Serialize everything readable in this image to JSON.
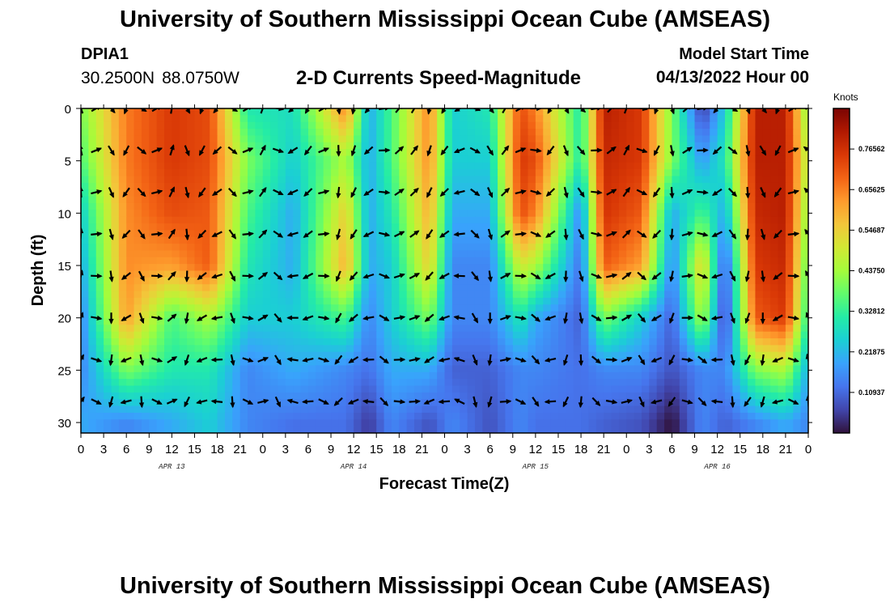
{
  "header": {
    "title": "University of Southern Mississippi Ocean Cube (AMSEAS)",
    "station_id": "DPIA1",
    "latitude": "30.2500N",
    "longitude": "88.0750W",
    "subtitle": "2-D Currents Speed-Magnitude",
    "model_start_label": "Model Start Time",
    "model_start_value": "04/13/2022 Hour 00"
  },
  "footer": {
    "title": "University of Southern Mississippi Ocean Cube (AMSEAS)"
  },
  "colors": {
    "colormap": [
      "#30123b",
      "#4145ab",
      "#4675ed",
      "#39a2fc",
      "#1bcfd4",
      "#24eca6",
      "#61fc6c",
      "#a4fc3b",
      "#d1e834",
      "#f3c63a",
      "#fe9b2d",
      "#f36315",
      "#d93806",
      "#b11901",
      "#7a0403"
    ]
  },
  "chart_data": {
    "type": "heatmap",
    "title": "2-D Currents Speed-Magnitude",
    "xlabel": "Forecast Time(Z)",
    "ylabel": "Depth (ft)",
    "x_unit": "hours since 2022-04-13 00Z",
    "xlim": [
      0,
      96
    ],
    "ylim": [
      0,
      31
    ],
    "y_inverted": true,
    "x_ticks": [
      0,
      3,
      6,
      9,
      12,
      15,
      18,
      21,
      24,
      27,
      30,
      33,
      36,
      39,
      42,
      45,
      48,
      51,
      54,
      57,
      60,
      63,
      66,
      69,
      72,
      75,
      78,
      81,
      84,
      87,
      90,
      93,
      96
    ],
    "x_tick_labels": [
      "0",
      "3",
      "6",
      "9",
      "12",
      "15",
      "18",
      "21",
      "0",
      "3",
      "6",
      "9",
      "12",
      "15",
      "18",
      "21",
      "0",
      "3",
      "6",
      "9",
      "12",
      "15",
      "18",
      "21",
      "0",
      "3",
      "6",
      "9",
      "12",
      "15",
      "18",
      "21",
      "0"
    ],
    "day_labels": [
      {
        "x": 12,
        "label": "APR 13"
      },
      {
        "x": 36,
        "label": "APR 14"
      },
      {
        "x": 60,
        "label": "APR 15"
      },
      {
        "x": 84,
        "label": "APR 16"
      }
    ],
    "y_ticks": [
      0,
      5,
      10,
      15,
      20,
      25,
      30
    ],
    "y_tick_labels": [
      "0",
      "5",
      "10",
      "15",
      "20",
      "25",
      "30"
    ],
    "colorbar": {
      "units": "Knots",
      "range": [
        0,
        0.875
      ],
      "ticks": [
        0.10937,
        0.21875,
        0.32812,
        0.4375,
        0.54687,
        0.65625,
        0.76562
      ],
      "tick_labels": [
        "0.10937",
        "0.21875",
        "0.32812",
        "0.43750",
        "0.54687",
        "0.65625",
        "0.76562"
      ]
    },
    "depths_ft": [
      0,
      4,
      8,
      12,
      16,
      20,
      24,
      28
    ],
    "speed_cells": {
      "hours": [
        0,
        6,
        12,
        17,
        22,
        28,
        35,
        38,
        41,
        46,
        49,
        54,
        58,
        60,
        66,
        69,
        74,
        78,
        82,
        85,
        89,
        93,
        96
      ],
      "depths_ft": [
        0,
        5,
        10,
        15,
        20,
        25,
        30
      ],
      "rows": [
        [
          0.4,
          0.66,
          0.75,
          0.72,
          0.3,
          0.28,
          0.65,
          0.2,
          0.35,
          0.65,
          0.25,
          0.3,
          0.72,
          0.65,
          0.3,
          0.8,
          0.75,
          0.4,
          0.05,
          0.25,
          0.8,
          0.8,
          0.4
        ],
        [
          0.35,
          0.66,
          0.75,
          0.72,
          0.4,
          0.25,
          0.45,
          0.2,
          0.35,
          0.64,
          0.25,
          0.25,
          0.75,
          0.72,
          0.3,
          0.78,
          0.75,
          0.4,
          0.18,
          0.3,
          0.8,
          0.8,
          0.45
        ],
        [
          0.25,
          0.64,
          0.72,
          0.7,
          0.35,
          0.2,
          0.55,
          0.2,
          0.3,
          0.6,
          0.2,
          0.2,
          0.72,
          0.65,
          0.15,
          0.76,
          0.7,
          0.2,
          0.35,
          0.2,
          0.78,
          0.8,
          0.4
        ],
        [
          0.2,
          0.64,
          0.62,
          0.7,
          0.3,
          0.2,
          0.6,
          0.2,
          0.25,
          0.55,
          0.15,
          0.15,
          0.5,
          0.45,
          0.12,
          0.7,
          0.62,
          0.15,
          0.55,
          0.08,
          0.75,
          0.78,
          0.35
        ],
        [
          0.15,
          0.62,
          0.35,
          0.45,
          0.25,
          0.25,
          0.35,
          0.15,
          0.25,
          0.4,
          0.15,
          0.15,
          0.3,
          0.2,
          0.1,
          0.4,
          0.25,
          0.1,
          0.45,
          0.05,
          0.7,
          0.75,
          0.3
        ],
        [
          0.15,
          0.4,
          0.3,
          0.3,
          0.15,
          0.2,
          0.15,
          0.12,
          0.2,
          0.2,
          0.1,
          0.1,
          0.15,
          0.15,
          0.12,
          0.15,
          0.15,
          0.08,
          0.15,
          0.15,
          0.4,
          0.45,
          0.2
        ],
        [
          0.2,
          0.15,
          0.2,
          0.25,
          0.15,
          0.12,
          0.12,
          0.05,
          0.15,
          0.08,
          0.15,
          0.08,
          0.15,
          0.12,
          0.12,
          0.1,
          0.08,
          0.0,
          0.15,
          0.1,
          0.15,
          0.2,
          0.15
        ]
      ]
    },
    "arrow_hours": [
      0,
      2,
      4,
      6,
      8,
      10,
      12,
      14,
      16,
      18,
      20,
      22,
      24,
      26,
      28,
      30,
      32,
      34,
      36,
      38,
      40,
      42,
      44,
      46,
      48,
      50,
      52,
      54,
      56,
      58,
      60,
      62,
      64,
      66,
      68,
      70,
      72,
      74,
      76,
      78,
      80,
      82,
      84,
      86,
      88,
      90,
      92,
      94,
      96
    ],
    "arrow_directions_deg": [
      340,
      60,
      140,
      200,
      120,
      60,
      10,
      150,
      200,
      220,
      120,
      60,
      20,
      100,
      230,
      210,
      60,
      170,
      190,
      220,
      80,
      40,
      30,
      190,
      210,
      240,
      110,
      140,
      30,
      60,
      90,
      210,
      150,
      130,
      80,
      45,
      20,
      100,
      200,
      160,
      50,
      80,
      220,
      120,
      160,
      140,
      200,
      60,
      300
    ],
    "arrow_turn_per_depth_deg": 8
  }
}
